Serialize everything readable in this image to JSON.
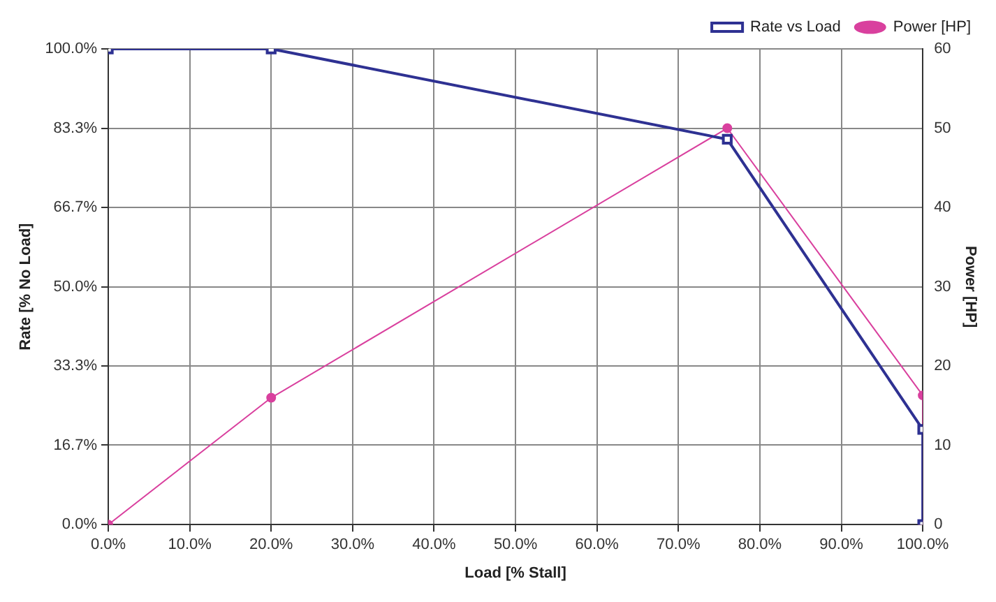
{
  "chart_data": {
    "type": "line",
    "xlabel": "Load [% Stall]",
    "ylabel": "Rate [% No Load]",
    "y2label": "Power [HP]",
    "series": [
      {
        "name": "Rate vs Load",
        "color": "#2e3192",
        "marker": "square",
        "x": [
          0,
          20,
          76,
          100,
          100
        ],
        "values": [
          100,
          100,
          81,
          20,
          0
        ]
      },
      {
        "name": "Power [HP]",
        "color": "#d9409e",
        "marker": "circle",
        "axis": "y2",
        "x": [
          0,
          20,
          76,
          100,
          100
        ],
        "values": [
          0,
          16,
          50,
          16.3,
          0
        ]
      }
    ],
    "xlim": [
      0,
      100
    ],
    "xticks": [
      {
        "value": 0,
        "label": "0.0%"
      },
      {
        "value": 10,
        "label": "10.0%"
      },
      {
        "value": 20,
        "label": "20.0%"
      },
      {
        "value": 30,
        "label": "30.0%"
      },
      {
        "value": 40,
        "label": "40.0%"
      },
      {
        "value": 50,
        "label": "50.0%"
      },
      {
        "value": 60,
        "label": "60.0%"
      },
      {
        "value": 70,
        "label": "70.0%"
      },
      {
        "value": 80,
        "label": "80.0%"
      },
      {
        "value": 90,
        "label": "90.0%"
      },
      {
        "value": 100,
        "label": "100.0%"
      }
    ],
    "ylim": [
      0,
      100
    ],
    "yticks": [
      {
        "value": 0,
        "label": "0.0%"
      },
      {
        "value": 16.7,
        "label": "16.7%"
      },
      {
        "value": 33.3,
        "label": "33.3%"
      },
      {
        "value": 50,
        "label": "50.0%"
      },
      {
        "value": 66.7,
        "label": "66.7%"
      },
      {
        "value": 83.3,
        "label": "83.3%"
      },
      {
        "value": 100,
        "label": "100.0%"
      }
    ],
    "y2lim": [
      0,
      60
    ],
    "y2ticks": [
      0,
      10,
      20,
      30,
      40,
      50,
      60
    ],
    "grid": true,
    "legend": "top right",
    "line_style": "solid"
  }
}
